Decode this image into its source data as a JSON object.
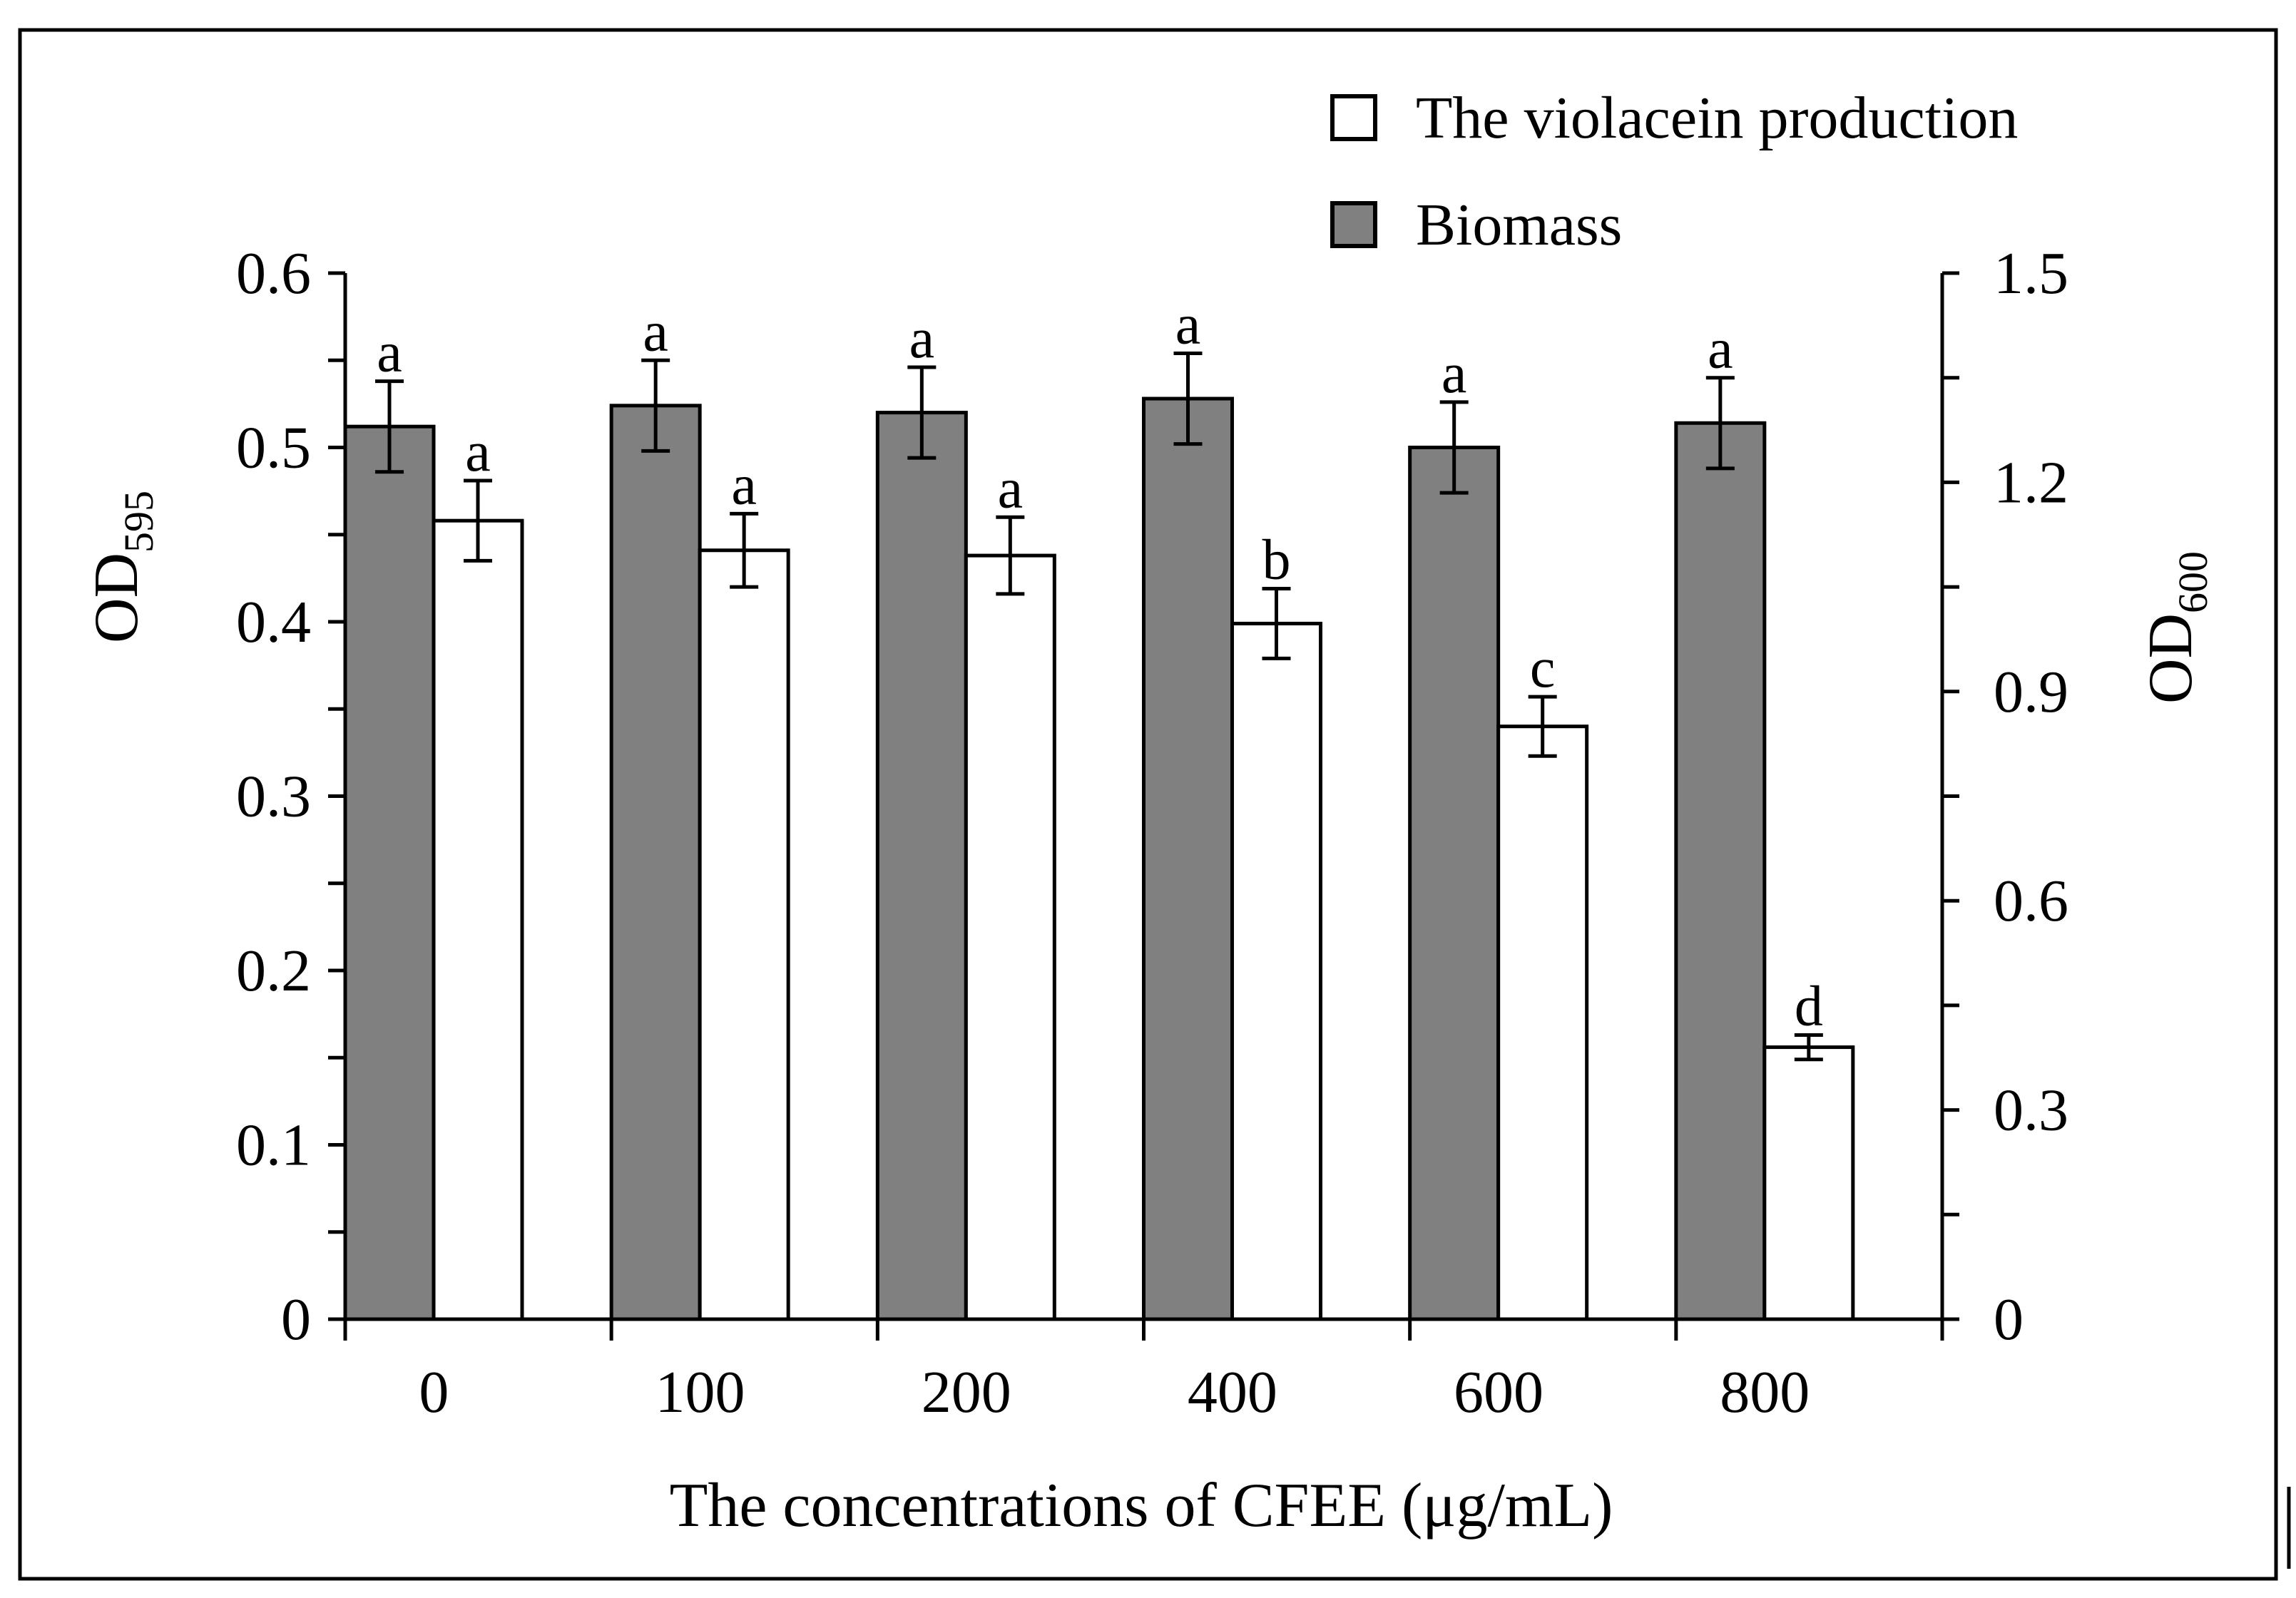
{
  "chart_data": {
    "type": "bar",
    "categories": [
      "0",
      "100",
      "200",
      "400",
      "600",
      "800"
    ],
    "xlabel": "The concentrations of CFEE (μg/mL)",
    "ylabel_left": {
      "base": "OD",
      "sub": "595"
    },
    "ylabel_right": {
      "base": "OD",
      "sub": "600"
    },
    "ylim_left": [
      0,
      0.6
    ],
    "ylim_right": [
      0,
      1.5
    ],
    "left_ticks": [
      "0",
      "0.1",
      "0.2",
      "0.3",
      "0.4",
      "0.5",
      "0.6"
    ],
    "right_ticks": [
      "0",
      "0.3",
      "0.6",
      "0.9",
      "1.2",
      "1.5"
    ],
    "legend_position": "top-right",
    "series": [
      {
        "name": "Biomass",
        "axis": "right",
        "color": "#808080",
        "values": [
          1.28,
          1.31,
          1.3,
          1.32,
          1.25,
          1.285
        ],
        "errors": [
          0.065,
          0.065,
          0.065,
          0.065,
          0.065,
          0.065
        ],
        "sig_letters": [
          "a",
          "a",
          "a",
          "a",
          "a",
          "a"
        ]
      },
      {
        "name": "The violacein production",
        "axis": "left",
        "color": "#ffffff",
        "values": [
          0.458,
          0.441,
          0.438,
          0.399,
          0.34,
          0.156
        ],
        "errors": [
          0.023,
          0.021,
          0.022,
          0.02,
          0.017,
          0.007
        ],
        "sig_letters": [
          "a",
          "a",
          "a",
          "b",
          "c",
          "d"
        ]
      }
    ]
  }
}
